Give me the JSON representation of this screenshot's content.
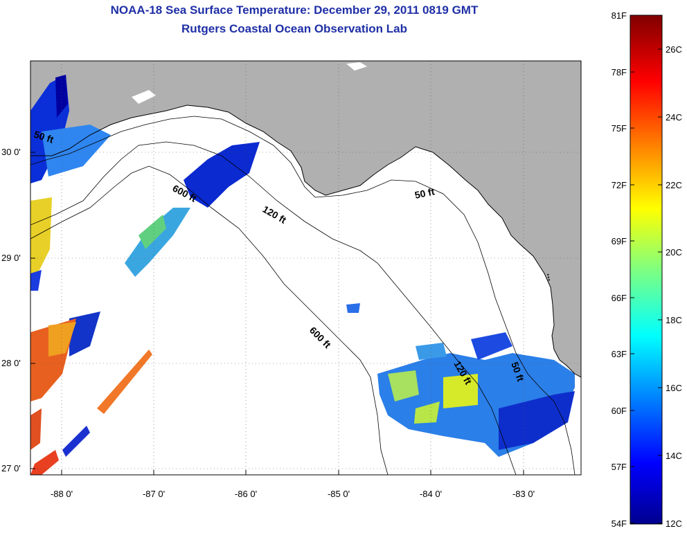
{
  "title": {
    "line1": "NOAA-18 Sea Surface Temperature:  December 29, 2011 0819 GMT",
    "line2": "Rutgers Coastal Ocean Observation Lab"
  },
  "axes": {
    "lon_ticks": [
      "-88 0'",
      "-87 0'",
      "-86 0'",
      "-85 0'",
      "-84 0'",
      "-83 0'"
    ],
    "lat_ticks": [
      "30 0'",
      "29 0'",
      "28 0'",
      "27 0'"
    ]
  },
  "contours": {
    "label_50a": "50 ft",
    "label_600a": "600 ft",
    "label_120a": "120 ft",
    "label_50b": "50 ft",
    "label_600b": "600 ft",
    "label_120b": "120 ft",
    "label_50c": "50 ft"
  },
  "colorbar": {
    "fahrenheit": [
      "81F",
      "78F",
      "75F",
      "72F",
      "69F",
      "66F",
      "63F",
      "60F",
      "57F",
      "54F"
    ],
    "celsius": [
      "26C",
      "24C",
      "22C",
      "20C",
      "18C",
      "16C",
      "14C",
      "12C"
    ]
  },
  "colors": {
    "land": "#b0b0b0",
    "title": "#1f2fa6"
  }
}
